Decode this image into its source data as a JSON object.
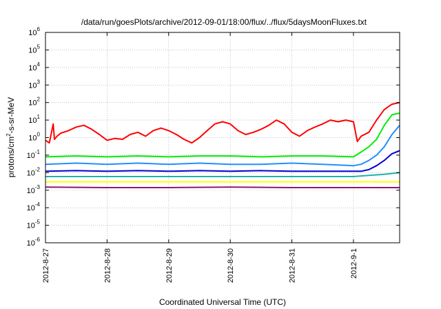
{
  "chart_data": {
    "type": "line",
    "title": "/data/run/goesPlots/archive/2012-09-01/18:00/flux/../flux/5daysMoonFluxes.txt",
    "xlabel": "Coordinated Universal Time (UTC)",
    "ylabel": {
      "base": "protons/cm",
      "sup": "2",
      "rest": "-s-sr-MeV"
    },
    "y_scale": "log",
    "ylim": [
      1e-06,
      1000000.0
    ],
    "y_ticks": [
      {
        "value": 1e-06,
        "exp": "-6"
      },
      {
        "value": 1e-05,
        "exp": "-5"
      },
      {
        "value": 0.0001,
        "exp": "-4"
      },
      {
        "value": 0.001,
        "exp": "-3"
      },
      {
        "value": 0.01,
        "exp": "-2"
      },
      {
        "value": 0.1,
        "exp": "-1"
      },
      {
        "value": 1,
        "exp": "0"
      },
      {
        "value": 10,
        "exp": "1"
      },
      {
        "value": 100,
        "exp": "2"
      },
      {
        "value": 1000,
        "exp": "3"
      },
      {
        "value": 10000,
        "exp": "4"
      },
      {
        "value": 100000,
        "exp": "5"
      },
      {
        "value": 1000000,
        "exp": "6"
      }
    ],
    "y_tick_base": "10",
    "xlim": [
      "2012-08-27",
      "2012-09-01T18:00"
    ],
    "x_ticks": [
      "2012-8-27",
      "2012-8-28",
      "2012-8-29",
      "2012-8-30",
      "2012-8-31",
      "2012-9-1"
    ],
    "grid": true,
    "legend": "none",
    "series": [
      {
        "color": "#ff0000",
        "x": [
          "2012-08-27T00:00",
          "2012-08-27T01:30",
          "2012-08-27T03:00",
          "2012-08-27T03:30",
          "2012-08-27T04:30",
          "2012-08-27T06:00",
          "2012-08-27T09:00",
          "2012-08-27T12:00",
          "2012-08-27T15:00",
          "2012-08-27T18:00",
          "2012-08-27T21:00",
          "2012-08-28T00:00",
          "2012-08-28T03:00",
          "2012-08-28T06:00",
          "2012-08-28T09:00",
          "2012-08-28T12:00",
          "2012-08-28T15:00",
          "2012-08-28T18:00",
          "2012-08-28T21:00",
          "2012-08-29T00:00",
          "2012-08-29T03:00",
          "2012-08-29T06:00",
          "2012-08-29T09:00",
          "2012-08-29T12:00",
          "2012-08-29T15:00",
          "2012-08-29T18:00",
          "2012-08-29T21:00",
          "2012-08-30T00:00",
          "2012-08-30T03:00",
          "2012-08-30T06:00",
          "2012-08-30T09:00",
          "2012-08-30T12:00",
          "2012-08-30T15:00",
          "2012-08-30T18:00",
          "2012-08-30T21:00",
          "2012-08-31T00:00",
          "2012-08-31T03:00",
          "2012-08-31T06:00",
          "2012-08-31T09:00",
          "2012-08-31T12:00",
          "2012-08-31T15:00",
          "2012-08-31T18:00",
          "2012-08-31T21:00",
          "2012-09-01T00:00",
          "2012-09-01T01:30",
          "2012-09-01T03:00",
          "2012-09-01T06:00",
          "2012-09-01T09:00",
          "2012-09-01T12:00",
          "2012-09-01T15:00",
          "2012-09-01T18:00"
        ],
        "y": [
          0.7,
          0.5,
          6,
          0.8,
          1.2,
          1.8,
          2.5,
          4,
          5,
          3,
          1.5,
          0.7,
          0.9,
          0.8,
          1.5,
          2,
          1.2,
          2.5,
          3.5,
          2.5,
          1.5,
          0.8,
          0.5,
          1,
          2.5,
          6,
          8,
          6,
          2.5,
          1.5,
          2,
          3,
          5,
          10,
          6,
          2,
          1.2,
          2.5,
          4,
          6,
          10,
          8,
          10,
          8,
          0.6,
          1.2,
          2,
          10,
          40,
          80,
          100
        ]
      },
      {
        "color": "#00ee00",
        "x": [
          "2012-08-27T00:00",
          "2012-08-27T12:00",
          "2012-08-28T00:00",
          "2012-08-28T12:00",
          "2012-08-29T00:00",
          "2012-08-29T12:00",
          "2012-08-30T00:00",
          "2012-08-30T12:00",
          "2012-08-31T00:00",
          "2012-08-31T12:00",
          "2012-09-01T00:00",
          "2012-09-01T03:00",
          "2012-09-01T06:00",
          "2012-09-01T09:00",
          "2012-09-01T12:00",
          "2012-09-01T15:00",
          "2012-09-01T18:00"
        ],
        "y": [
          0.08,
          0.09,
          0.08,
          0.09,
          0.08,
          0.09,
          0.09,
          0.08,
          0.09,
          0.09,
          0.08,
          0.15,
          0.3,
          0.8,
          5,
          20,
          25
        ]
      },
      {
        "color": "#1e90ff",
        "x": [
          "2012-08-27T00:00",
          "2012-08-27T12:00",
          "2012-08-28T00:00",
          "2012-08-28T12:00",
          "2012-08-29T00:00",
          "2012-08-29T12:00",
          "2012-08-30T00:00",
          "2012-08-30T12:00",
          "2012-08-31T00:00",
          "2012-08-31T12:00",
          "2012-09-01T00:00",
          "2012-09-01T03:00",
          "2012-09-01T06:00",
          "2012-09-01T09:00",
          "2012-09-01T12:00",
          "2012-09-01T15:00",
          "2012-09-01T18:00"
        ],
        "y": [
          0.03,
          0.035,
          0.03,
          0.035,
          0.03,
          0.035,
          0.03,
          0.03,
          0.035,
          0.03,
          0.025,
          0.03,
          0.05,
          0.1,
          0.3,
          1.5,
          5
        ]
      },
      {
        "color": "#0000cd",
        "x": [
          "2012-08-27T00:00",
          "2012-08-27T12:00",
          "2012-08-28T00:00",
          "2012-08-28T12:00",
          "2012-08-29T00:00",
          "2012-08-29T12:00",
          "2012-08-30T00:00",
          "2012-08-30T12:00",
          "2012-08-31T00:00",
          "2012-08-31T12:00",
          "2012-09-01T00:00",
          "2012-09-01T03:00",
          "2012-09-01T06:00",
          "2012-09-01T09:00",
          "2012-09-01T12:00",
          "2012-09-01T15:00",
          "2012-09-01T18:00"
        ],
        "y": [
          0.012,
          0.013,
          0.012,
          0.013,
          0.012,
          0.013,
          0.012,
          0.013,
          0.012,
          0.012,
          0.012,
          0.012,
          0.015,
          0.025,
          0.05,
          0.12,
          0.18
        ]
      },
      {
        "color": "#20b2aa",
        "x": [
          "2012-08-27T00:00",
          "2012-08-27T12:00",
          "2012-08-28T00:00",
          "2012-08-28T12:00",
          "2012-08-29T00:00",
          "2012-08-29T12:00",
          "2012-08-30T00:00",
          "2012-08-30T12:00",
          "2012-08-31T00:00",
          "2012-08-31T12:00",
          "2012-09-01T00:00",
          "2012-09-01T06:00",
          "2012-09-01T12:00",
          "2012-09-01T18:00"
        ],
        "y": [
          0.006,
          0.006,
          0.006,
          0.006,
          0.006,
          0.006,
          0.006,
          0.006,
          0.006,
          0.006,
          0.006,
          0.007,
          0.008,
          0.01
        ]
      },
      {
        "color": "#ffff00",
        "x": [
          "2012-08-27T00:00",
          "2012-08-28T00:00",
          "2012-08-29T00:00",
          "2012-08-30T00:00",
          "2012-08-31T00:00",
          "2012-09-01T00:00",
          "2012-09-01T18:00"
        ],
        "y": [
          0.003,
          0.003,
          0.003,
          0.003,
          0.003,
          0.003,
          0.003
        ]
      },
      {
        "color": "#8b1a6b",
        "x": [
          "2012-08-27T00:00",
          "2012-08-28T00:00",
          "2012-08-29T00:00",
          "2012-08-30T00:00",
          "2012-08-31T00:00",
          "2012-09-01T00:00",
          "2012-09-01T18:00"
        ],
        "y": [
          0.0015,
          0.0014,
          0.0014,
          0.0015,
          0.0014,
          0.0014,
          0.0014
        ]
      }
    ]
  }
}
